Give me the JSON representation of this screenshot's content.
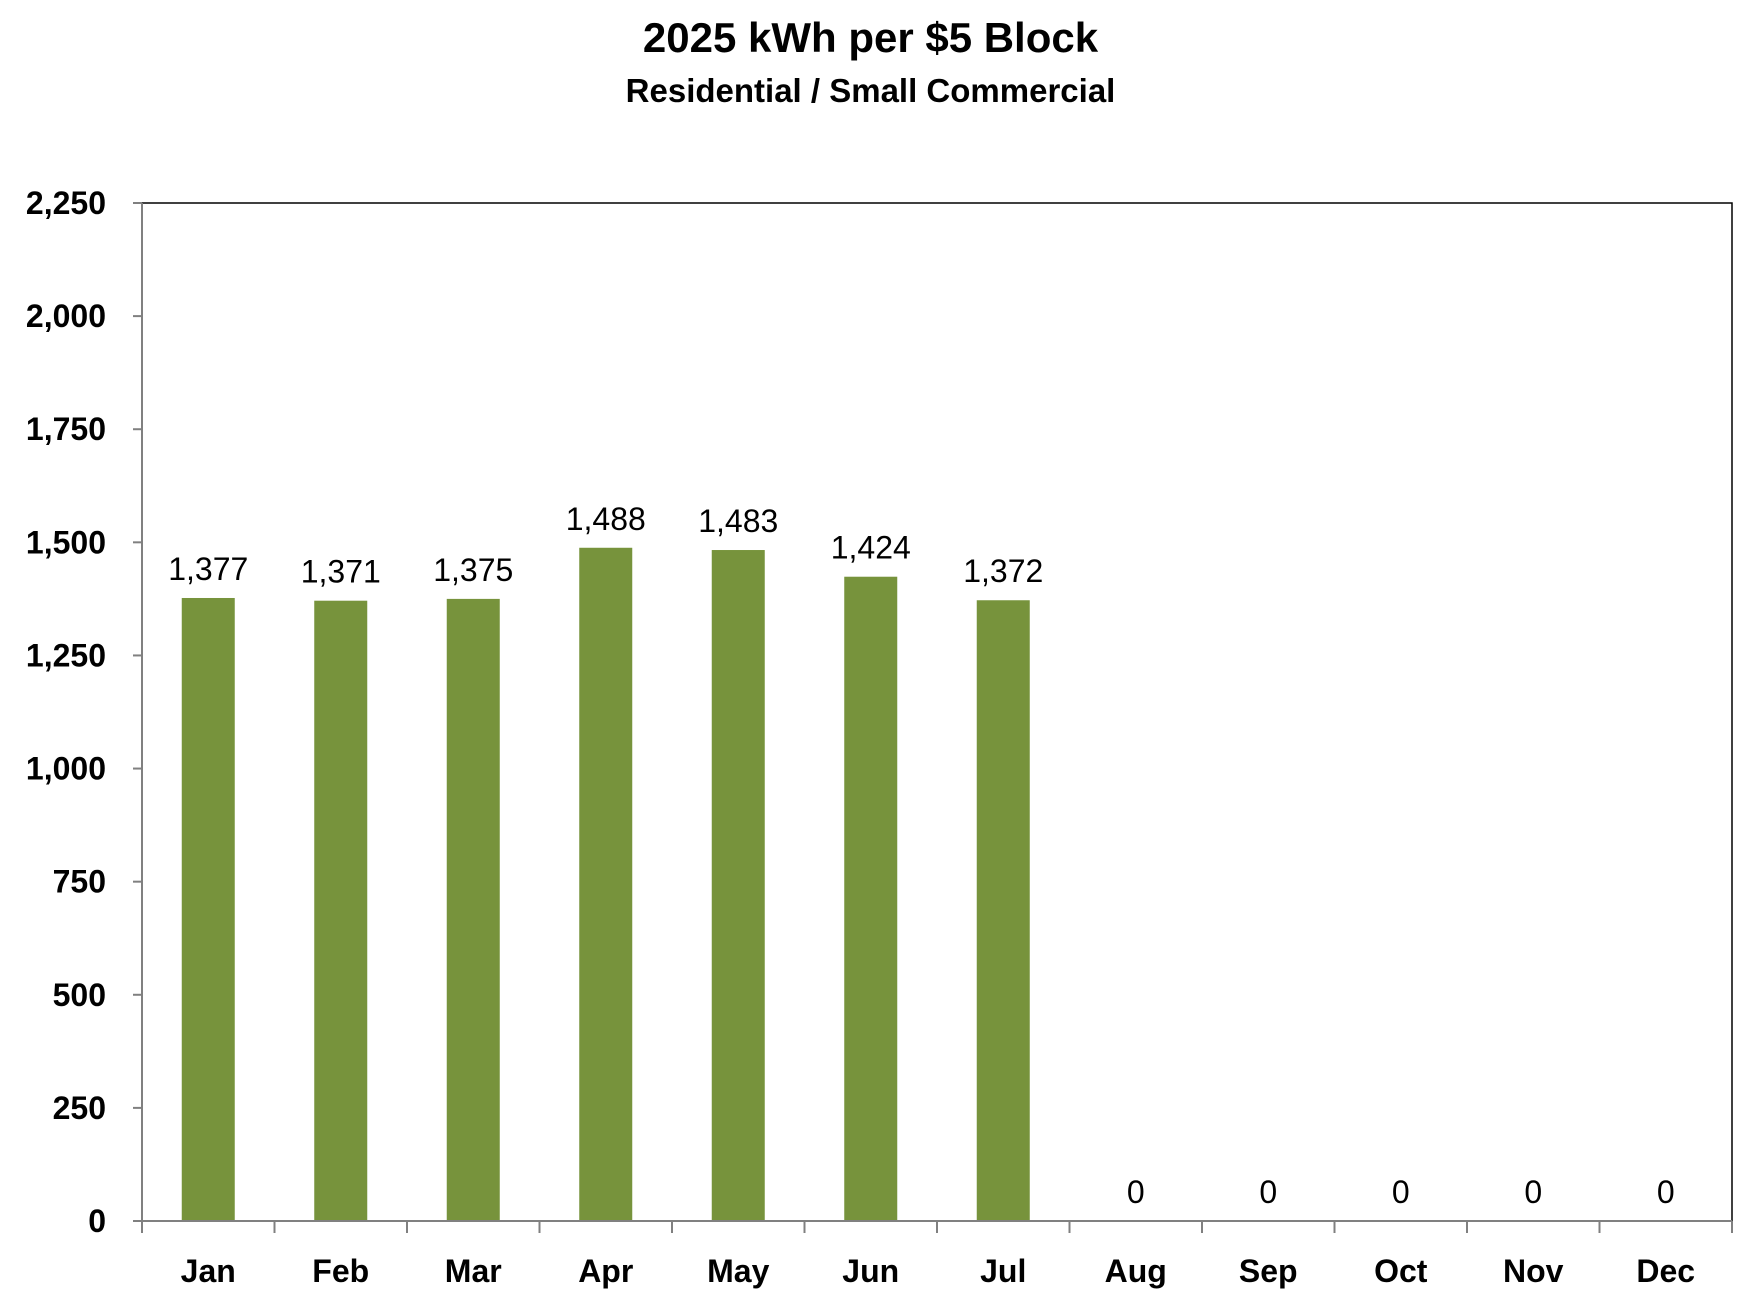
{
  "chart_data": {
    "type": "bar",
    "title": "2025 kWh per $5 Block",
    "subtitle": "Residential / Small Commercial",
    "xlabel": "",
    "ylabel": "",
    "categories": [
      "Jan",
      "Feb",
      "Mar",
      "Apr",
      "May",
      "Jun",
      "Jul",
      "Aug",
      "Sep",
      "Oct",
      "Nov",
      "Dec"
    ],
    "values": [
      1377,
      1371,
      1375,
      1488,
      1483,
      1424,
      1372,
      0,
      0,
      0,
      0,
      0
    ],
    "data_labels": [
      "1,377",
      "1,371",
      "1,375",
      "1,488",
      "1,483",
      "1,424",
      "1,372",
      "0",
      "0",
      "0",
      "0",
      "0"
    ],
    "ylim": [
      0,
      2250
    ],
    "yticks": [
      0,
      250,
      500,
      750,
      1000,
      1250,
      1500,
      1750,
      2000,
      2250
    ],
    "ytick_labels": [
      "0",
      "250",
      "500",
      "750",
      "1,000",
      "1,250",
      "1,500",
      "1,750",
      "2,000",
      "2,250"
    ],
    "grid": false,
    "legend": "none",
    "bar_color": "#77933c"
  }
}
